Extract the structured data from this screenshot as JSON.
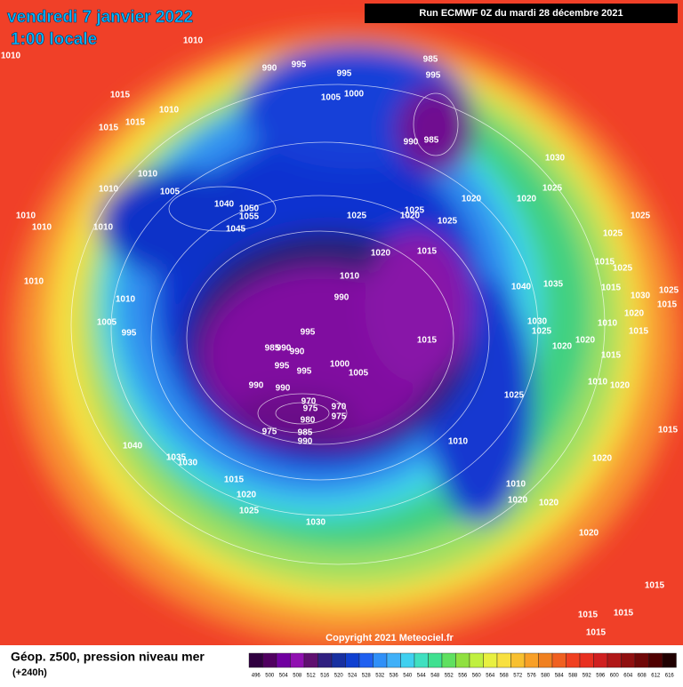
{
  "header": {
    "title": "vendredi 7 janvier 2022",
    "time": "1:00 locale",
    "run": "Run ECMWF 0Z du mardi 28 décembre 2021"
  },
  "map": {
    "isobar_labels": [
      1010,
      1010,
      1015,
      1015,
      1015,
      1010,
      990,
      995,
      995,
      1005,
      1000,
      985,
      995,
      990,
      985,
      1030,
      1010,
      1010,
      1005,
      1040,
      1050,
      1055,
      1045,
      1025,
      1020,
      1025,
      1025,
      1020,
      1020,
      1025,
      1025,
      1025,
      1010,
      1010,
      1010,
      1020,
      1015,
      1010,
      990,
      1040,
      1035,
      1015,
      1025,
      1015,
      1030,
      1025,
      1015,
      1030,
      1025,
      1010,
      1020,
      1020,
      1020,
      1015,
      1015,
      1015,
      1010,
      1010,
      1005,
      995,
      995,
      990,
      985,
      990,
      995,
      995,
      1000,
      1005,
      990,
      990,
      970,
      975,
      980,
      970,
      975,
      975,
      985,
      990,
      1025,
      1010,
      1020,
      1015,
      1040,
      1035,
      1030,
      1010,
      1020,
      1015,
      1020,
      1025,
      1030,
      1010,
      1020,
      1020,
      1020,
      1015,
      1015,
      1015,
      1015
    ],
    "copyright": "Copyright 2021 Meteociel.fr"
  },
  "footer": {
    "title": "Géop. z500, pression niveau mer",
    "lead": "(+240h)"
  },
  "colorbar": {
    "ticks": [
      496,
      500,
      504,
      508,
      512,
      516,
      520,
      524,
      528,
      532,
      536,
      540,
      544,
      548,
      552,
      556,
      560,
      564,
      568,
      572,
      576,
      580,
      584,
      588,
      592,
      596,
      600,
      604,
      608,
      612,
      616
    ],
    "colors": [
      "#300040",
      "#500060",
      "#7000a0",
      "#9010b0",
      "#601070",
      "#302080",
      "#1830a0",
      "#1040d0",
      "#2060f0",
      "#3090f8",
      "#40b0f8",
      "#40d0f0",
      "#40e0c0",
      "#40e090",
      "#60e060",
      "#90e040",
      "#c0f040",
      "#e8f040",
      "#f8e040",
      "#f8c030",
      "#f8a028",
      "#f08020",
      "#f06020",
      "#f04020",
      "#e83020",
      "#d02020",
      "#b01818",
      "#901010",
      "#700808",
      "#500000",
      "#200000"
    ]
  }
}
